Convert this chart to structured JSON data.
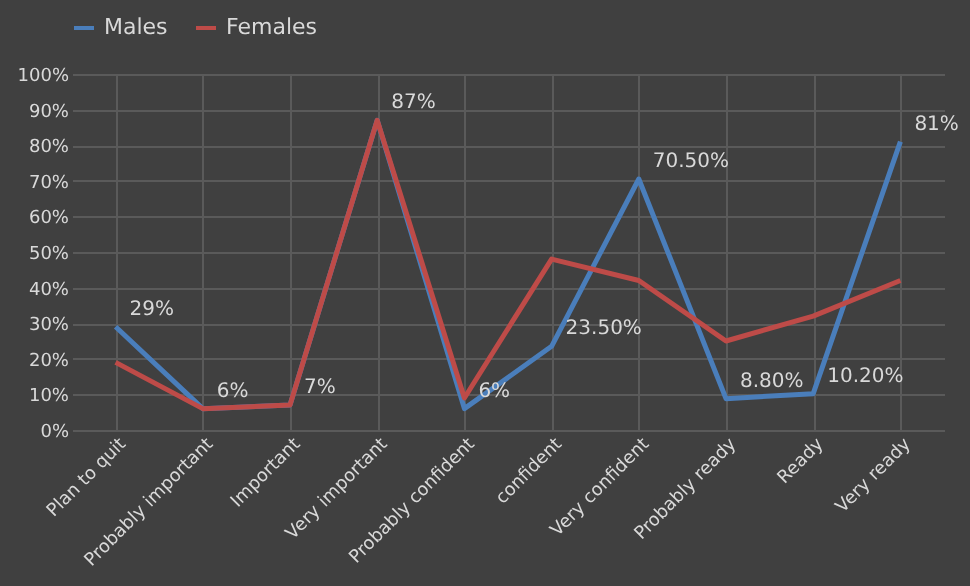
{
  "chart_data": {
    "type": "line",
    "categories": [
      "Plan to quit",
      "Probably important",
      "Important",
      "Very important",
      "Probably confident",
      "confident",
      "Very confident",
      "Probably ready",
      "Ready",
      "Very ready"
    ],
    "series": [
      {
        "name": "Males",
        "color": "#4a7ebb",
        "values": [
          29,
          6,
          7,
          87,
          6,
          23.5,
          70.5,
          8.8,
          10.2,
          81
        ],
        "value_labels": [
          "29%",
          "6%",
          "7%",
          "87%",
          "6%",
          "23.50%",
          "70.50%",
          "8.80%",
          "10.20%",
          "81%"
        ]
      },
      {
        "name": "Females",
        "color": "#be4b48",
        "values": [
          19,
          6,
          7,
          87,
          9,
          48,
          42,
          25,
          32,
          42
        ]
      }
    ],
    "ylim": [
      0,
      100
    ],
    "yticks": [
      {
        "value": 0,
        "label": "0%"
      },
      {
        "value": 10,
        "label": "10%"
      },
      {
        "value": 20,
        "label": "20%"
      },
      {
        "value": 30,
        "label": "30%"
      },
      {
        "value": 40,
        "label": "40%"
      },
      {
        "value": 50,
        "label": "50%"
      },
      {
        "value": 60,
        "label": "60%"
      },
      {
        "value": 70,
        "label": "70%"
      },
      {
        "value": 80,
        "label": "80%"
      },
      {
        "value": 90,
        "label": "90%"
      },
      {
        "value": 100,
        "label": "100%"
      }
    ],
    "grid": true,
    "legend": "top",
    "marker": "none",
    "line_style": "solid"
  }
}
